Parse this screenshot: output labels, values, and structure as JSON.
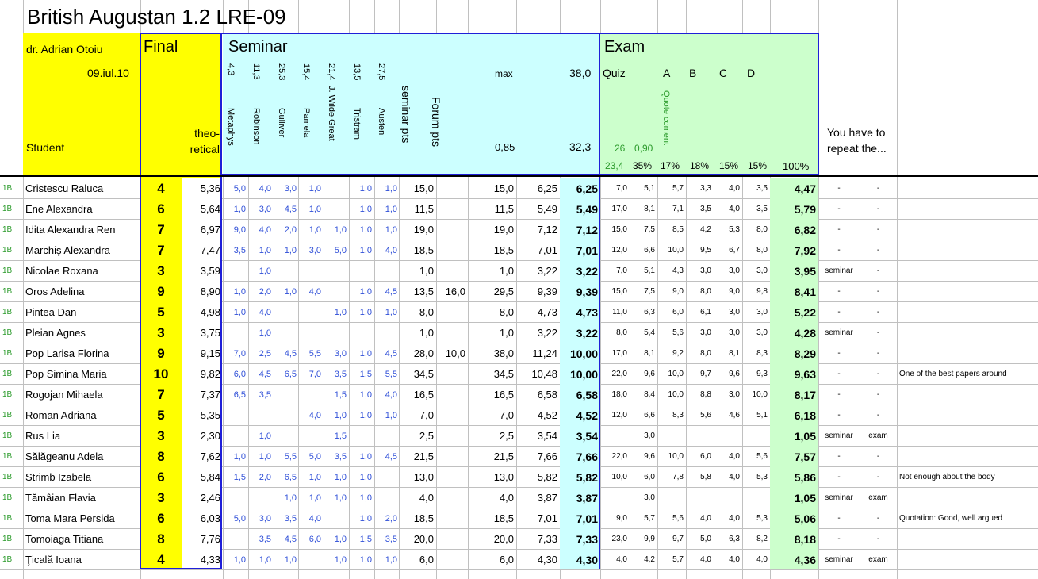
{
  "title": "British Augustan 1.2 LRE-09",
  "teacher": "dr. Adrian Otoiu",
  "date": "09.iul.10",
  "student_label": "Student",
  "final_label": "Final",
  "theoretical_label": "theo-\nretical",
  "seminar_label": "Seminar",
  "exam_label": "Exam",
  "seminar_cols": [
    {
      "name": "Metaphys",
      "max": "4,3"
    },
    {
      "name": "Robinson",
      "max": "11,3"
    },
    {
      "name": "Gulliver",
      "max": "25,3"
    },
    {
      "name": "Pamela",
      "max": "15,4"
    },
    {
      "name": "J. Wilde Great",
      "max": "21,4"
    },
    {
      "name": "Tristram",
      "max": "13,5"
    },
    {
      "name": "Austen",
      "max": "27,5"
    }
  ],
  "seminar_pts_label": "seminar pts",
  "forum_pts_label": "Forum pts",
  "max_label": "max",
  "max_val": "38,0",
  "coef": "0,85",
  "coef_val": "32,3",
  "quiz_label": "Quiz",
  "exam_letters": [
    "A",
    "B",
    "C",
    "D"
  ],
  "quote_label": "Quote coment",
  "quiz_vals": [
    "26",
    "0,90"
  ],
  "pcts": [
    "23,4",
    "35%",
    "17%",
    "18%",
    "15%",
    "15%",
    "100%"
  ],
  "repeat_label": "You have to repeat the...",
  "group": "1B",
  "rows": [
    {
      "name": "Cristescu Raluca",
      "final": "4",
      "theo": "5,36",
      "sem": [
        "5,0",
        "4,0",
        "3,0",
        "1,0",
        "",
        "1,0",
        "1,0"
      ],
      "spts": "15,0",
      "forum": "",
      "tot": "15,0",
      "sc": "6,25",
      "sb": "6,25",
      "ex": [
        "7,0",
        "5,1",
        "5,7",
        "3,3",
        "4,0",
        "3,5"
      ],
      "eb": "4,47",
      "r1": "-",
      "r2": "-",
      "note": ""
    },
    {
      "name": "Ene Alexandra",
      "final": "6",
      "theo": "5,64",
      "sem": [
        "1,0",
        "3,0",
        "4,5",
        "1,0",
        "",
        "1,0",
        "1,0"
      ],
      "spts": "11,5",
      "forum": "",
      "tot": "11,5",
      "sc": "5,49",
      "sb": "5,49",
      "ex": [
        "17,0",
        "8,1",
        "7,1",
        "3,5",
        "4,0",
        "3,5"
      ],
      "eb": "5,79",
      "r1": "-",
      "r2": "-",
      "note": ""
    },
    {
      "name": "Idita Alexandra Ren",
      "final": "7",
      "theo": "6,97",
      "sem": [
        "9,0",
        "4,0",
        "2,0",
        "1,0",
        "1,0",
        "1,0",
        "1,0"
      ],
      "spts": "19,0",
      "forum": "",
      "tot": "19,0",
      "sc": "7,12",
      "sb": "7,12",
      "ex": [
        "15,0",
        "7,5",
        "8,5",
        "4,2",
        "5,3",
        "8,0"
      ],
      "eb": "6,82",
      "r1": "-",
      "r2": "-",
      "note": ""
    },
    {
      "name": "Marchiş Alexandra",
      "final": "7",
      "theo": "7,47",
      "sem": [
        "3,5",
        "1,0",
        "1,0",
        "3,0",
        "5,0",
        "1,0",
        "4,0"
      ],
      "spts": "18,5",
      "forum": "",
      "tot": "18,5",
      "sc": "7,01",
      "sb": "7,01",
      "ex": [
        "12,0",
        "6,6",
        "10,0",
        "9,5",
        "6,7",
        "8,0"
      ],
      "eb": "7,92",
      "r1": "-",
      "r2": "-",
      "note": ""
    },
    {
      "name": "Nicolae Roxana",
      "final": "3",
      "theo": "3,59",
      "sem": [
        "",
        "1,0",
        "",
        "",
        "",
        "",
        ""
      ],
      "spts": "1,0",
      "forum": "",
      "tot": "1,0",
      "sc": "3,22",
      "sb": "3,22",
      "ex": [
        "7,0",
        "5,1",
        "4,3",
        "3,0",
        "3,0",
        "3,0"
      ],
      "eb": "3,95",
      "r1": "seminar",
      "r2": "-",
      "note": ""
    },
    {
      "name": "Oros Adelina",
      "final": "9",
      "theo": "8,90",
      "sem": [
        "1,0",
        "2,0",
        "1,0",
        "4,0",
        "",
        "1,0",
        "4,5"
      ],
      "spts": "13,5",
      "forum": "16,0",
      "tot": "29,5",
      "sc": "9,39",
      "sb": "9,39",
      "ex": [
        "15,0",
        "7,5",
        "9,0",
        "8,0",
        "9,0",
        "9,8"
      ],
      "eb": "8,41",
      "r1": "-",
      "r2": "-",
      "note": ""
    },
    {
      "name": "Pintea Dan",
      "final": "5",
      "theo": "4,98",
      "sem": [
        "1,0",
        "4,0",
        "",
        "",
        "1,0",
        "1,0",
        "1,0"
      ],
      "spts": "8,0",
      "forum": "",
      "tot": "8,0",
      "sc": "4,73",
      "sb": "4,73",
      "ex": [
        "11,0",
        "6,3",
        "6,0",
        "6,1",
        "3,0",
        "3,0"
      ],
      "eb": "5,22",
      "r1": "-",
      "r2": "-",
      "note": ""
    },
    {
      "name": "Pleian Agnes",
      "final": "3",
      "theo": "3,75",
      "sem": [
        "",
        "1,0",
        "",
        "",
        "",
        "",
        ""
      ],
      "spts": "1,0",
      "forum": "",
      "tot": "1,0",
      "sc": "3,22",
      "sb": "3,22",
      "ex": [
        "8,0",
        "5,4",
        "5,6",
        "3,0",
        "3,0",
        "3,0"
      ],
      "eb": "4,28",
      "r1": "seminar",
      "r2": "-",
      "note": ""
    },
    {
      "name": "Pop Larisa Florina",
      "final": "9",
      "theo": "9,15",
      "sem": [
        "7,0",
        "2,5",
        "4,5",
        "5,5",
        "3,0",
        "1,0",
        "4,5"
      ],
      "spts": "28,0",
      "forum": "10,0",
      "tot": "38,0",
      "sc": "11,24",
      "sb": "10,00",
      "ex": [
        "17,0",
        "8,1",
        "9,2",
        "8,0",
        "8,1",
        "8,3"
      ],
      "eb": "8,29",
      "r1": "-",
      "r2": "-",
      "note": ""
    },
    {
      "name": "Pop Simina Maria",
      "final": "10",
      "theo": "9,82",
      "sem": [
        "6,0",
        "4,5",
        "6,5",
        "7,0",
        "3,5",
        "1,5",
        "5,5"
      ],
      "spts": "34,5",
      "forum": "",
      "tot": "34,5",
      "sc": "10,48",
      "sb": "10,00",
      "ex": [
        "22,0",
        "9,6",
        "10,0",
        "9,7",
        "9,6",
        "9,3"
      ],
      "eb": "9,63",
      "r1": "-",
      "r2": "-",
      "note": "One of the best papers around"
    },
    {
      "name": "Rogojan Mihaela",
      "final": "7",
      "theo": "7,37",
      "sem": [
        "6,5",
        "3,5",
        "",
        "",
        "1,5",
        "1,0",
        "4,0"
      ],
      "spts": "16,5",
      "forum": "",
      "tot": "16,5",
      "sc": "6,58",
      "sb": "6,58",
      "ex": [
        "18,0",
        "8,4",
        "10,0",
        "8,8",
        "3,0",
        "10,0"
      ],
      "eb": "8,17",
      "r1": "-",
      "r2": "-",
      "note": ""
    },
    {
      "name": "Roman Adriana",
      "final": "5",
      "theo": "5,35",
      "sem": [
        "",
        "",
        "",
        "4,0",
        "1,0",
        "1,0",
        "1,0"
      ],
      "spts": "7,0",
      "forum": "",
      "tot": "7,0",
      "sc": "4,52",
      "sb": "4,52",
      "ex": [
        "12,0",
        "6,6",
        "8,3",
        "5,6",
        "4,6",
        "5,1"
      ],
      "eb": "6,18",
      "r1": "-",
      "r2": "-",
      "note": ""
    },
    {
      "name": "Rus Lia",
      "final": "3",
      "theo": "2,30",
      "sem": [
        "",
        "1,0",
        "",
        "",
        "1,5",
        "",
        ""
      ],
      "spts": "2,5",
      "forum": "",
      "tot": "2,5",
      "sc": "3,54",
      "sb": "3,54",
      "ex": [
        "",
        "3,0",
        "",
        "",
        "",
        ""
      ],
      "eb": "1,05",
      "r1": "seminar",
      "r2": "exam",
      "note": ""
    },
    {
      "name": "Sălăgeanu Adela",
      "final": "8",
      "theo": "7,62",
      "sem": [
        "1,0",
        "1,0",
        "5,5",
        "5,0",
        "3,5",
        "1,0",
        "4,5"
      ],
      "spts": "21,5",
      "forum": "",
      "tot": "21,5",
      "sc": "7,66",
      "sb": "7,66",
      "ex": [
        "22,0",
        "9,6",
        "10,0",
        "6,0",
        "4,0",
        "5,6"
      ],
      "eb": "7,57",
      "r1": "-",
      "r2": "-",
      "note": ""
    },
    {
      "name": "Strimb Izabela",
      "final": "6",
      "theo": "5,84",
      "sem": [
        "1,5",
        "2,0",
        "6,5",
        "1,0",
        "1,0",
        "1,0",
        ""
      ],
      "spts": "13,0",
      "forum": "",
      "tot": "13,0",
      "sc": "5,82",
      "sb": "5,82",
      "ex": [
        "10,0",
        "6,0",
        "7,8",
        "5,8",
        "4,0",
        "5,3"
      ],
      "eb": "5,86",
      "r1": "-",
      "r2": "-",
      "note": "Not enough about the body"
    },
    {
      "name": "Tămâian Flavia",
      "final": "3",
      "theo": "2,46",
      "sem": [
        "",
        "",
        "1,0",
        "1,0",
        "1,0",
        "1,0",
        ""
      ],
      "spts": "4,0",
      "forum": "",
      "tot": "4,0",
      "sc": "3,87",
      "sb": "3,87",
      "ex": [
        "",
        "3,0",
        "",
        "",
        "",
        ""
      ],
      "eb": "1,05",
      "r1": "seminar",
      "r2": "exam",
      "note": ""
    },
    {
      "name": "Toma Mara Persida",
      "final": "6",
      "theo": "6,03",
      "sem": [
        "5,0",
        "3,0",
        "3,5",
        "4,0",
        "",
        "1,0",
        "2,0"
      ],
      "spts": "18,5",
      "forum": "",
      "tot": "18,5",
      "sc": "7,01",
      "sb": "7,01",
      "ex": [
        "9,0",
        "5,7",
        "5,6",
        "4,0",
        "4,0",
        "5,3"
      ],
      "eb": "5,06",
      "r1": "-",
      "r2": "-",
      "note": "Quotation: Good, well argued"
    },
    {
      "name": "Tomoiaga Titiana",
      "final": "8",
      "theo": "7,76",
      "sem": [
        "",
        "3,5",
        "4,5",
        "6,0",
        "1,0",
        "1,5",
        "3,5"
      ],
      "spts": "20,0",
      "forum": "",
      "tot": "20,0",
      "sc": "7,33",
      "sb": "7,33",
      "ex": [
        "23,0",
        "9,9",
        "9,7",
        "5,0",
        "6,3",
        "8,2"
      ],
      "eb": "8,18",
      "r1": "-",
      "r2": "-",
      "note": ""
    },
    {
      "name": "Ţicală Ioana",
      "final": "4",
      "theo": "4,33",
      "sem": [
        "1,0",
        "1,0",
        "1,0",
        "",
        "1,0",
        "1,0",
        "1,0"
      ],
      "spts": "6,0",
      "forum": "",
      "tot": "6,0",
      "sc": "4,30",
      "sb": "4,30",
      "ex": [
        "4,0",
        "4,2",
        "5,7",
        "4,0",
        "4,0",
        "4,0"
      ],
      "eb": "4,36",
      "r1": "seminar",
      "r2": "exam",
      "note": ""
    }
  ],
  "colors": {
    "yellow": "#ffff00",
    "cyan": "#ccffff",
    "green": "#ccffcc",
    "blue_border": "#1f1fd8",
    "grid": "#c0c0c0"
  }
}
